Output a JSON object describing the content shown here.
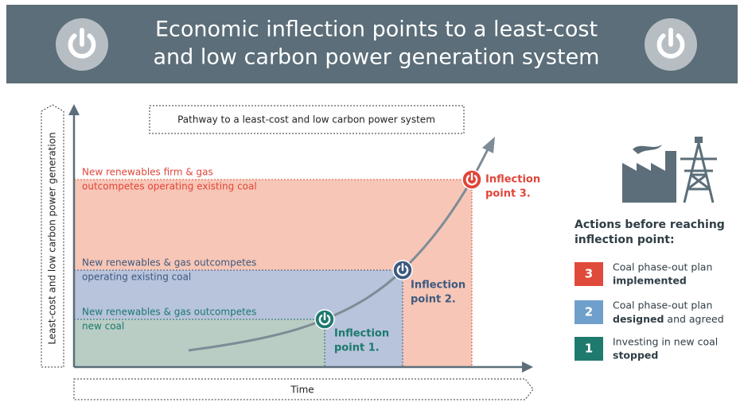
{
  "header": {
    "title_lines": [
      "Economic inflection points to a least-cost",
      "and low carbon power generation system"
    ]
  },
  "chart": {
    "box_label": "Pathway to a least-cost and low carbon power system",
    "y_axis_label": "Least-cost and low carbon power generation",
    "x_axis_label": "Time",
    "zones": [
      {
        "label_lines": [
          "New renewables & gas outcompetes",
          "new coal"
        ],
        "point_lines": [
          "Inflection",
          "point 1."
        ]
      },
      {
        "label_lines": [
          "New renewables & gas outcompetes",
          "operating existing coal"
        ],
        "point_lines": [
          "Inflection",
          "point 2."
        ]
      },
      {
        "label_lines": [
          "New renewables firm & gas",
          "outcompetes operating existing coal"
        ],
        "point_lines": [
          "Inflection",
          "point 3."
        ]
      }
    ]
  },
  "actions": {
    "title_lines": [
      "Actions before reaching",
      "inflection point:"
    ],
    "items": [
      {
        "number": "3",
        "line": "Coal phase-out plan",
        "bold": "implemented"
      },
      {
        "number": "2",
        "line": "Coal phase-out plan",
        "bold": "designed",
        "tail": " and agreed"
      },
      {
        "number": "1",
        "line": "Investing in new coal",
        "bold": "stopped"
      }
    ]
  }
}
